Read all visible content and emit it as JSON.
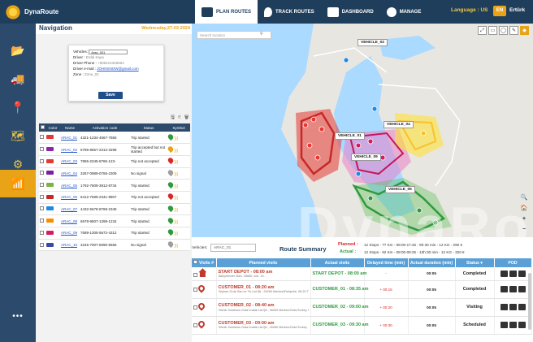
{
  "app": {
    "name": "DynaRoute",
    "language_label": "Language : US",
    "language_code": "EN",
    "user": "Ertürk"
  },
  "tabs": [
    {
      "label": "PLAN ROUTES",
      "icon": "truck-route-icon",
      "active": true
    },
    {
      "label": "TRACK ROUTES",
      "icon": "location-signal-icon",
      "active": false
    },
    {
      "label": "DASHBOARD",
      "icon": "chart-line-icon",
      "active": false
    },
    {
      "label": "MANAGE",
      "icon": "gear-icon",
      "active": false
    }
  ],
  "sidebar": {
    "items": [
      {
        "name": "folder-icon",
        "glyph": "📂",
        "active": false
      },
      {
        "name": "truck-icon",
        "glyph": "🚚",
        "active": false
      },
      {
        "name": "map-pin-icon",
        "glyph": "📍",
        "active": false
      },
      {
        "name": "map-icon",
        "glyph": "🗺",
        "active": false
      },
      {
        "name": "gears-icon",
        "glyph": "⚙",
        "active": false
      },
      {
        "name": "mobile-signal-icon",
        "glyph": "📶",
        "active": true
      }
    ],
    "more": "•••"
  },
  "navigation": {
    "title": "Navigation",
    "date": "Wednesday,27-03-2024",
    "popup": {
      "vehicles_label": "Vehicles:",
      "vehicle_value": "Araç_001",
      "driver_label": "Driver :",
      "driver_value": "Erdal Kaya",
      "phone_label": "Driver Phone :",
      "phone_value": "+905412345564",
      "email_label": "Driver e-mail :",
      "email_value": "JOHNSNOW@gmail.com",
      "zone_label": "Zone :",
      "zone_value": "Zone_01",
      "save_label": "Save"
    },
    "tools": "🖫 ⚟ 🗑",
    "table": {
      "headers": [
        "Color",
        "Name",
        "Activation code",
        "Status",
        "Symbol"
      ],
      "rows": [
        {
          "color": "#e53935",
          "name": "ARAC_01",
          "code": "4321-1234-4567-7865",
          "status": "Trip started",
          "pin": "#2e9a3e"
        },
        {
          "color": "#8e24aa",
          "name": "ARAC_02",
          "code": "6785-9657-2312-3298",
          "status": "Trip accepted but not started",
          "pin": "#e8a317"
        },
        {
          "color": "#e53935",
          "name": "ARAC_03",
          "code": "7865-2345-8765-123-",
          "status": "Trip not accepted",
          "pin": "#d62828"
        },
        {
          "color": "#7b1fa2",
          "name": "ARAC_04",
          "code": "3267-0989-0765-2309",
          "status": "No signal",
          "pin": "#9e9e9e"
        },
        {
          "color": "#7cb342",
          "name": "ARAC_05",
          "code": "1792-7609-3912-8734",
          "status": "Trip started",
          "pin": "#2e9a3e"
        },
        {
          "color": "#c62828",
          "name": "ARAC_06",
          "code": "6412-7689-2341-9807",
          "status": "Trip not accepted",
          "pin": "#d62828"
        },
        {
          "color": "#1e88e5",
          "name": "ARAC_07",
          "code": "4432-5678-8769-2345",
          "status": "Trip started",
          "pin": "#2e9a3e"
        },
        {
          "color": "#fb8c00",
          "name": "ARAC_08",
          "code": "6578-9607-1298-1234",
          "status": "Trip started",
          "pin": "#2e9a3e"
        },
        {
          "color": "#d81b60",
          "name": "ARAC_09",
          "code": "7689-1305-5672-4312",
          "status": "Trip started",
          "pin": "#2e9a3e"
        },
        {
          "color": "#3949ab",
          "name": "ARAC_10",
          "code": "3245-7007-6090-5566",
          "status": "No signal",
          "pin": "#9e9e9e"
        }
      ]
    }
  },
  "map": {
    "search_placeholder": "Search location",
    "tools": [
      "⤢",
      "▭",
      "◯",
      "✎"
    ],
    "vehicle_labels": [
      "VEHICLE_03",
      "VEHICLE_04",
      "VEHICLE_01",
      "VEHICLE_09",
      "VEHICLE_05"
    ],
    "watermark": "DynaRoute",
    "zoom": [
      "🔍",
      "🏠",
      "+",
      "−"
    ]
  },
  "summary": {
    "vehicles_label": "Vehicles:",
    "vehicle_value": "ARAC_01",
    "title": "Route Summary",
    "planned_label": "Planned :",
    "actual_label": "Actual :",
    "planned": "12 Stops  -  77 Km  -  08:00-17:45  -  9h:30 min  -  12 KG  -  290 €",
    "actual": "12 Stops  -  92 Km  -  08:00-09:25  -  10h:30 min  -  12 KG  -  320 €"
  },
  "visits": {
    "headers": [
      "Visits #",
      "Planned visits",
      "Actual visits",
      "Delayed time (min)",
      "Actual duration (min)",
      "Status",
      "POD"
    ],
    "rows": [
      {
        "title": "START DEPOT - 08:00 am",
        "sub": "Bahçelievler Mah. 28660. sok. 15.",
        "actual": "START DEPOT - 08:00 am",
        "delay": "-",
        "duration": "00:05",
        "status": "Completed",
        "status_color": "#222",
        "icon": "home"
      },
      {
        "title": "CUSTOMER_01 - 08:20 am",
        "sub": "Seyhan Gıda San.ve Tic.Ltd.Şti., 26280 Merkez/Eskişehir, 08-20 Turkey",
        "actual": "CUSTOMER_01 - 08:35 am",
        "delay": "+ 00:15",
        "duration": "00:05",
        "status": "Completed",
        "status_color": "#222",
        "icon": "pin"
      },
      {
        "title": "CUSTOMER_02 - 08:40 am",
        "sub": "Teknik Solutions Gıda İmalat Ltd.Şti., 36000 Merkez/Ordu/Turkey  98760 ₺ 5,30 • 00:25 • 1 box • 1 Kg",
        "actual": "CUSTOMER_02 - 09:00 am",
        "delay": "+ 00:20",
        "duration": "00:05",
        "status": "Visiting",
        "status_color": "#222",
        "icon": "pin"
      },
      {
        "title": "CUSTOMER_03 - 09:00 am",
        "sub": "Teknik Solutions Gıda İmalat Ltd.Şti., 26280 Merkez/Ordu/Turkey",
        "actual": "CUSTOMER_03 - 09:30 am",
        "delay": "+ 00:30",
        "duration": "00:05",
        "status": "Scheduled",
        "status_color": "#222",
        "icon": "pin"
      }
    ]
  },
  "colors": {
    "nav_dark": "#1f3e5c",
    "accent": "#e8a317",
    "table_head": "#5a9fd6"
  }
}
